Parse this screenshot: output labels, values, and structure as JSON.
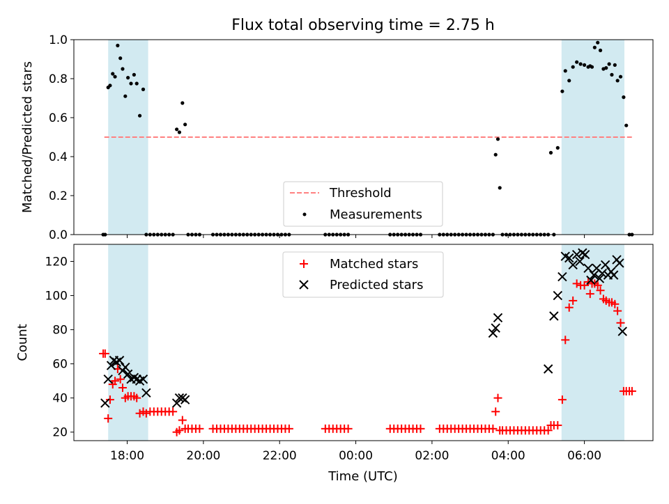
{
  "figure": {
    "title": "Flux total observing time = 2.75 h",
    "xlabel": "Time (UTC)",
    "x_tick_labels": [
      "18:00",
      "20:00",
      "22:00",
      "00:00",
      "02:00",
      "04:00",
      "06:00"
    ]
  },
  "colors": {
    "band": "#add8e6",
    "threshold": "#ff8080",
    "measurements": "#000000",
    "matched": "#ff0000",
    "predicted": "#000000"
  },
  "chart_data": [
    {
      "type": "scatter",
      "panel": "top",
      "ylabel": "Matched/Predicted stars",
      "ylim": [
        0.0,
        1.0
      ],
      "y_ticks": [
        0.0,
        0.2,
        0.4,
        0.6,
        0.8,
        1.0
      ],
      "y_tick_labels": [
        "0.0",
        "0.2",
        "0.4",
        "0.6",
        "0.8",
        "1.0"
      ],
      "x_unit": "hours since 00:00 UTC",
      "xlim": [
        16.6,
        31.8
      ],
      "x_ticks": [
        18,
        20,
        22,
        24,
        26,
        28,
        30
      ],
      "shaded_intervals": [
        [
          17.5,
          18.55
        ],
        [
          29.4,
          31.05
        ]
      ],
      "threshold": {
        "name": "Threshold",
        "y": 0.5,
        "x_range": [
          17.4,
          31.3
        ]
      },
      "legend": {
        "position": "lower-center",
        "threshold_label": "Threshold",
        "measurements_label": "Measurements"
      },
      "series": [
        {
          "name": "Measurements",
          "marker": "dot",
          "x": [
            17.37,
            17.42,
            17.5,
            17.55,
            17.62,
            17.68,
            17.75,
            17.82,
            17.88,
            17.95,
            18.02,
            18.1,
            18.18,
            18.25,
            18.33,
            18.42,
            18.5,
            18.6,
            18.7,
            18.8,
            18.9,
            19.0,
            19.1,
            19.2,
            19.3,
            19.37,
            19.45,
            19.52,
            19.6,
            19.7,
            19.8,
            19.9,
            20.25,
            20.35,
            20.45,
            20.55,
            20.65,
            20.75,
            20.85,
            20.95,
            21.05,
            21.15,
            21.25,
            21.35,
            21.45,
            21.55,
            21.65,
            21.75,
            21.85,
            21.95,
            22.05,
            22.15,
            22.25,
            23.2,
            23.3,
            23.4,
            23.5,
            23.6,
            23.7,
            23.8,
            24.9,
            25.0,
            25.1,
            25.2,
            25.3,
            25.4,
            25.5,
            25.6,
            25.7,
            26.2,
            26.3,
            26.4,
            26.5,
            26.6,
            26.7,
            26.8,
            26.9,
            27.0,
            27.1,
            27.2,
            27.3,
            27.4,
            27.5,
            27.6,
            27.67,
            27.73,
            27.78,
            27.85,
            27.95,
            28.05,
            28.15,
            28.25,
            28.35,
            28.45,
            28.55,
            28.65,
            28.75,
            28.85,
            28.95,
            29.05,
            29.12,
            29.2,
            29.3,
            29.42,
            29.5,
            29.6,
            29.7,
            29.8,
            29.9,
            30.0,
            30.1,
            30.15,
            30.2,
            30.27,
            30.35,
            30.42,
            30.5,
            30.57,
            30.65,
            30.72,
            30.8,
            30.87,
            30.95,
            31.03,
            31.1,
            31.18,
            31.25
          ],
          "y": [
            0.0,
            0.0,
            0.755,
            0.765,
            0.825,
            0.81,
            0.97,
            0.905,
            0.85,
            0.71,
            0.805,
            0.775,
            0.82,
            0.775,
            0.61,
            0.745,
            0.0,
            0.0,
            0.0,
            0.0,
            0.0,
            0.0,
            0.0,
            0.0,
            0.54,
            0.525,
            0.675,
            0.565,
            0.0,
            0.0,
            0.0,
            0.0,
            0.0,
            0.0,
            0.0,
            0.0,
            0.0,
            0.0,
            0.0,
            0.0,
            0.0,
            0.0,
            0.0,
            0.0,
            0.0,
            0.0,
            0.0,
            0.0,
            0.0,
            0.0,
            0.0,
            0.0,
            0.0,
            0.0,
            0.0,
            0.0,
            0.0,
            0.0,
            0.0,
            0.0,
            0.0,
            0.0,
            0.0,
            0.0,
            0.0,
            0.0,
            0.0,
            0.0,
            0.0,
            0.0,
            0.0,
            0.0,
            0.0,
            0.0,
            0.0,
            0.0,
            0.0,
            0.0,
            0.0,
            0.0,
            0.0,
            0.0,
            0.0,
            0.0,
            0.41,
            0.49,
            0.24,
            0.0,
            0.0,
            0.0,
            0.0,
            0.0,
            0.0,
            0.0,
            0.0,
            0.0,
            0.0,
            0.0,
            0.0,
            0.0,
            0.42,
            0.0,
            0.445,
            0.735,
            0.84,
            0.79,
            0.86,
            0.885,
            0.875,
            0.87,
            0.86,
            0.865,
            0.86,
            0.96,
            0.985,
            0.945,
            0.85,
            0.855,
            0.875,
            0.82,
            0.87,
            0.79,
            0.81,
            0.705,
            0.56,
            0.0,
            0.0
          ]
        }
      ]
    },
    {
      "type": "scatter",
      "panel": "bottom",
      "ylabel": "Count",
      "ylim": [
        15,
        130
      ],
      "y_ticks": [
        20,
        40,
        60,
        80,
        100,
        120
      ],
      "y_tick_labels": [
        "20",
        "40",
        "60",
        "80",
        "100",
        "120"
      ],
      "x_unit": "hours since 00:00 UTC",
      "xlim": [
        16.6,
        31.8
      ],
      "x_ticks": [
        18,
        20,
        22,
        24,
        26,
        28,
        30
      ],
      "shaded_intervals": [
        [
          17.5,
          18.55
        ],
        [
          29.4,
          31.05
        ]
      ],
      "legend": {
        "position": "upper-center",
        "matched_label": "Matched stars",
        "predicted_label": "Predicted stars"
      },
      "series": [
        {
          "name": "Matched stars",
          "marker": "plus",
          "x": [
            17.37,
            17.42,
            17.5,
            17.55,
            17.62,
            17.68,
            17.75,
            17.82,
            17.88,
            17.95,
            18.02,
            18.1,
            18.18,
            18.25,
            18.33,
            18.42,
            18.5,
            18.6,
            18.7,
            18.8,
            18.9,
            19.0,
            19.1,
            19.2,
            19.3,
            19.37,
            19.45,
            19.52,
            19.6,
            19.7,
            19.8,
            19.9,
            20.25,
            20.35,
            20.45,
            20.55,
            20.65,
            20.75,
            20.85,
            20.95,
            21.05,
            21.15,
            21.25,
            21.35,
            21.45,
            21.55,
            21.65,
            21.75,
            21.85,
            21.95,
            22.05,
            22.15,
            22.25,
            23.2,
            23.3,
            23.4,
            23.5,
            23.6,
            23.7,
            23.8,
            24.9,
            25.0,
            25.1,
            25.2,
            25.3,
            25.4,
            25.5,
            25.6,
            25.7,
            26.2,
            26.3,
            26.4,
            26.5,
            26.6,
            26.7,
            26.8,
            26.9,
            27.0,
            27.1,
            27.2,
            27.3,
            27.4,
            27.5,
            27.6,
            27.67,
            27.73,
            27.78,
            27.85,
            27.95,
            28.05,
            28.15,
            28.25,
            28.35,
            28.45,
            28.55,
            28.65,
            28.75,
            28.85,
            28.95,
            29.05,
            29.12,
            29.2,
            29.3,
            29.42,
            29.5,
            29.6,
            29.7,
            29.8,
            29.9,
            30.0,
            30.1,
            30.15,
            30.2,
            30.27,
            30.35,
            30.42,
            30.5,
            30.57,
            30.65,
            30.72,
            30.8,
            30.87,
            30.95,
            31.03,
            31.1,
            31.18,
            31.25
          ],
          "y": [
            66,
            66,
            28,
            39,
            48,
            50,
            57,
            51,
            46,
            40,
            41,
            41,
            41,
            40,
            31,
            32,
            31,
            32,
            32,
            32,
            32,
            32,
            32,
            32,
            20,
            21,
            27,
            22,
            22,
            22,
            22,
            22,
            22,
            22,
            22,
            22,
            22,
            22,
            22,
            22,
            22,
            22,
            22,
            22,
            22,
            22,
            22,
            22,
            22,
            22,
            22,
            22,
            22,
            22,
            22,
            22,
            22,
            22,
            22,
            22,
            22,
            22,
            22,
            22,
            22,
            22,
            22,
            22,
            22,
            22,
            22,
            22,
            22,
            22,
            22,
            22,
            22,
            22,
            22,
            22,
            22,
            22,
            22,
            22,
            32,
            40,
            21,
            21,
            21,
            21,
            21,
            21,
            21,
            21,
            21,
            21,
            21,
            21,
            21,
            21,
            24,
            24,
            24,
            39,
            74,
            93,
            97,
            107,
            106,
            106,
            108,
            101,
            107,
            107,
            106,
            103,
            98,
            97,
            96,
            96,
            95,
            91,
            84,
            44,
            44,
            44,
            44
          ]
        },
        {
          "name": "Predicted stars",
          "marker": "x",
          "x": [
            17.42,
            17.5,
            17.58,
            17.65,
            17.72,
            17.8,
            17.88,
            17.95,
            18.02,
            18.1,
            18.18,
            18.25,
            18.33,
            18.42,
            18.5,
            19.3,
            19.37,
            19.45,
            19.52,
            27.6,
            27.67,
            27.73,
            29.05,
            29.2,
            29.3,
            29.42,
            29.5,
            29.6,
            29.7,
            29.8,
            29.88,
            29.95,
            30.02,
            30.1,
            30.17,
            30.25,
            30.32,
            30.4,
            30.47,
            30.55,
            30.62,
            30.7,
            30.77,
            30.85,
            30.92,
            31.0
          ],
          "y": [
            37,
            51,
            59,
            62,
            61,
            62,
            56,
            58,
            54,
            51,
            52,
            51,
            50,
            51,
            43,
            37,
            40,
            40,
            39,
            78,
            81,
            87,
            57,
            88,
            100,
            111,
            123,
            122,
            118,
            124,
            120,
            125,
            124,
            116,
            109,
            112,
            116,
            110,
            113,
            118,
            112,
            114,
            112,
            121,
            119,
            79
          ]
        }
      ]
    }
  ]
}
